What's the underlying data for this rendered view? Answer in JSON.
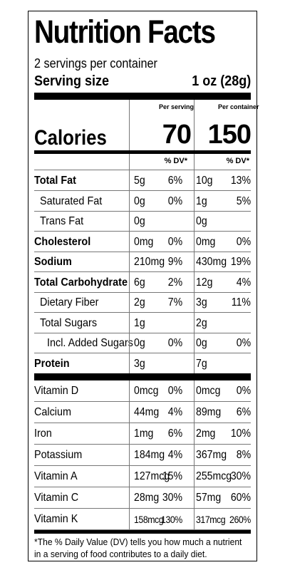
{
  "title": "Nutrition Facts",
  "servings_per_container": "2 servings per container",
  "serving_size_label": "Serving size",
  "serving_size_value": "1 oz (28g)",
  "calories_label": "Calories",
  "per_serving_label": "Per serving",
  "per_container_label": "Per container",
  "calories_per_serving": "70",
  "calories_per_container": "150",
  "dv_header": "% DV*",
  "nutrients": [
    {
      "name": "Total Fat",
      "bold": true,
      "indent": 0,
      "serving_amt": "5g",
      "serving_dv": "6%",
      "container_amt": "10g",
      "container_dv": "13%"
    },
    {
      "name": "Saturated Fat",
      "bold": false,
      "indent": 1,
      "serving_amt": "0g",
      "serving_dv": "0%",
      "container_amt": "1g",
      "container_dv": "5%"
    },
    {
      "name": "Trans Fat",
      "bold": false,
      "indent": 1,
      "serving_amt": "0g",
      "serving_dv": "",
      "container_amt": "0g",
      "container_dv": ""
    },
    {
      "name": "Cholesterol",
      "bold": true,
      "indent": 0,
      "serving_amt": "0mg",
      "serving_dv": "0%",
      "container_amt": "0mg",
      "container_dv": "0%"
    },
    {
      "name": "Sodium",
      "bold": true,
      "indent": 0,
      "serving_amt": "210mg",
      "serving_dv": "9%",
      "container_amt": "430mg",
      "container_dv": "19%"
    },
    {
      "name": "Total Carbohydrate",
      "bold": true,
      "indent": 0,
      "serving_amt": "6g",
      "serving_dv": "2%",
      "container_amt": "12g",
      "container_dv": "4%"
    },
    {
      "name": "Dietary Fiber",
      "bold": false,
      "indent": 1,
      "serving_amt": "2g",
      "serving_dv": "7%",
      "container_amt": "3g",
      "container_dv": "11%"
    },
    {
      "name": "Total Sugars",
      "bold": false,
      "indent": 1,
      "serving_amt": "1g",
      "serving_dv": "",
      "container_amt": "2g",
      "container_dv": ""
    },
    {
      "name": "Incl. Added Sugars",
      "bold": false,
      "indent": 2,
      "serving_amt": "0g",
      "serving_dv": "0%",
      "container_amt": "0g",
      "container_dv": "0%"
    },
    {
      "name": "Protein",
      "bold": true,
      "indent": 0,
      "serving_amt": "3g",
      "serving_dv": "",
      "container_amt": "7g",
      "container_dv": ""
    }
  ],
  "vitamins": [
    {
      "name": "Vitamin D",
      "serving_amt": "0mcg",
      "serving_dv": "0%",
      "container_amt": "0mcg",
      "container_dv": "0%"
    },
    {
      "name": "Calcium",
      "serving_amt": "44mg",
      "serving_dv": "4%",
      "container_amt": "89mg",
      "container_dv": "6%"
    },
    {
      "name": "Iron",
      "serving_amt": "1mg",
      "serving_dv": "6%",
      "container_amt": "2mg",
      "container_dv": "10%"
    },
    {
      "name": "Potassium",
      "serving_amt": "184mg",
      "serving_dv": "4%",
      "container_amt": "367mg",
      "container_dv": "8%"
    },
    {
      "name": "Vitamin A",
      "serving_amt": "127mcg",
      "serving_dv": "15%",
      "container_amt": "255mcg",
      "container_dv": "30%"
    },
    {
      "name": "Vitamin C",
      "serving_amt": "28mg",
      "serving_dv": "30%",
      "container_amt": "57mg",
      "container_dv": "60%"
    },
    {
      "name": "Vitamin K",
      "serving_amt": "158mcg",
      "serving_dv": "130%",
      "container_amt": "317mcg",
      "container_dv": "260%"
    }
  ],
  "footnote": "*The % Daily Value (DV) tells you how much a nutrient in a serving of food contributes to a daily diet."
}
